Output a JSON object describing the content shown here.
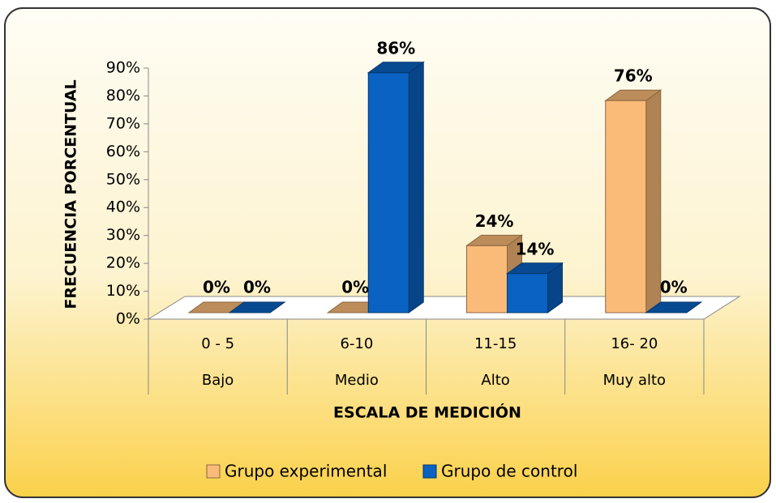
{
  "chart_data": {
    "type": "bar3d",
    "x_label": "ESCALA DE MEDICIÓN",
    "y_label": "FRECUENCIA PORCENTUAL",
    "categories": [
      "0 - 5",
      "6-10",
      "11-15",
      "16- 20"
    ],
    "category_groups": [
      "Bajo",
      "Medio",
      "Alto",
      "Muy alto"
    ],
    "series": [
      {
        "name": "Grupo experimental",
        "color": "#fbbb78",
        "values": [
          0,
          0,
          24,
          76
        ],
        "value_labels": [
          "0%",
          "0%",
          "24%",
          "76%"
        ]
      },
      {
        "name": "Grupo de control",
        "color": "#0a62c2",
        "values": [
          0,
          86,
          14,
          0
        ],
        "value_labels": [
          "0%",
          "86%",
          "14%",
          "0%"
        ]
      }
    ],
    "ylim": [
      0,
      90
    ],
    "yticks": [
      {
        "value": 0,
        "label": "0%"
      },
      {
        "value": 10,
        "label": "10%"
      },
      {
        "value": 20,
        "label": "20%"
      },
      {
        "value": 30,
        "label": "30%"
      },
      {
        "value": 40,
        "label": "40%"
      },
      {
        "value": 50,
        "label": "50%"
      },
      {
        "value": 60,
        "label": "60%"
      },
      {
        "value": 70,
        "label": "70%"
      },
      {
        "value": 80,
        "label": "80%"
      },
      {
        "value": 90,
        "label": "90%"
      }
    ],
    "legend": "bottom"
  }
}
